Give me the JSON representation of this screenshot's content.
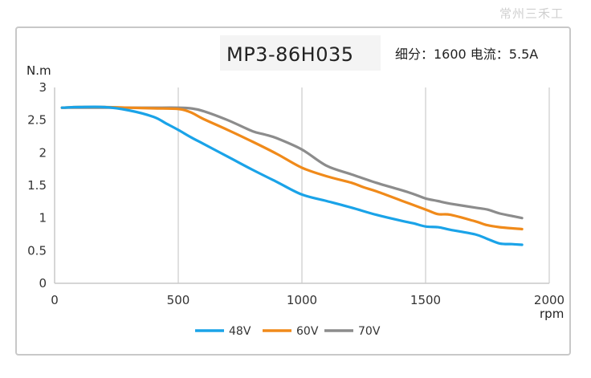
{
  "watermark": "常州三禾工",
  "chart_data": {
    "type": "line",
    "title": "MP3-86H035",
    "subtitle": "细分：1600 电流：5.5A",
    "xlabel": "rpm",
    "ylabel": "N.m",
    "xlim": [
      0,
      2000
    ],
    "ylim": [
      0,
      3
    ],
    "xticks": [
      0,
      500,
      1000,
      1500,
      2000
    ],
    "yticks": [
      0,
      0.5,
      1,
      1.5,
      2,
      2.5,
      3
    ],
    "ytick_labels": [
      "0",
      "0.5",
      "1",
      "1.5",
      "2",
      "2.5",
      "3"
    ],
    "grid": "vertical",
    "legend_position": "bottom",
    "series": [
      {
        "name": "48V",
        "color": "#1aa3e8",
        "x": [
          30,
          100,
          200,
          300,
          400,
          450,
          500,
          550,
          600,
          700,
          800,
          900,
          1000,
          1100,
          1200,
          1300,
          1400,
          1450,
          1500,
          1550,
          1600,
          1700,
          1750,
          1800,
          1850,
          1890
        ],
        "y": [
          2.69,
          2.7,
          2.7,
          2.65,
          2.55,
          2.45,
          2.35,
          2.24,
          2.14,
          1.94,
          1.74,
          1.55,
          1.36,
          1.26,
          1.16,
          1.05,
          0.96,
          0.92,
          0.87,
          0.86,
          0.82,
          0.75,
          0.68,
          0.61,
          0.6,
          0.59
        ]
      },
      {
        "name": "60V",
        "color": "#f08a1a",
        "x": [
          30,
          100,
          200,
          300,
          400,
          500,
          550,
          600,
          700,
          800,
          900,
          1000,
          1100,
          1200,
          1250,
          1300,
          1400,
          1500,
          1550,
          1600,
          1700,
          1750,
          1800,
          1890
        ],
        "y": [
          2.69,
          2.7,
          2.7,
          2.69,
          2.68,
          2.67,
          2.62,
          2.52,
          2.35,
          2.17,
          1.98,
          1.77,
          1.64,
          1.54,
          1.47,
          1.41,
          1.27,
          1.13,
          1.06,
          1.05,
          0.95,
          0.89,
          0.86,
          0.83
        ]
      },
      {
        "name": "70V",
        "color": "#8c8c8c",
        "x": [
          30,
          100,
          200,
          300,
          400,
          500,
          550,
          600,
          700,
          800,
          850,
          900,
          1000,
          1100,
          1200,
          1300,
          1400,
          1450,
          1500,
          1550,
          1600,
          1700,
          1750,
          1800,
          1890
        ],
        "y": [
          2.69,
          2.69,
          2.69,
          2.69,
          2.69,
          2.69,
          2.68,
          2.64,
          2.5,
          2.33,
          2.28,
          2.22,
          2.05,
          1.8,
          1.67,
          1.54,
          1.43,
          1.37,
          1.3,
          1.26,
          1.22,
          1.16,
          1.13,
          1.07,
          1.0
        ]
      }
    ]
  }
}
